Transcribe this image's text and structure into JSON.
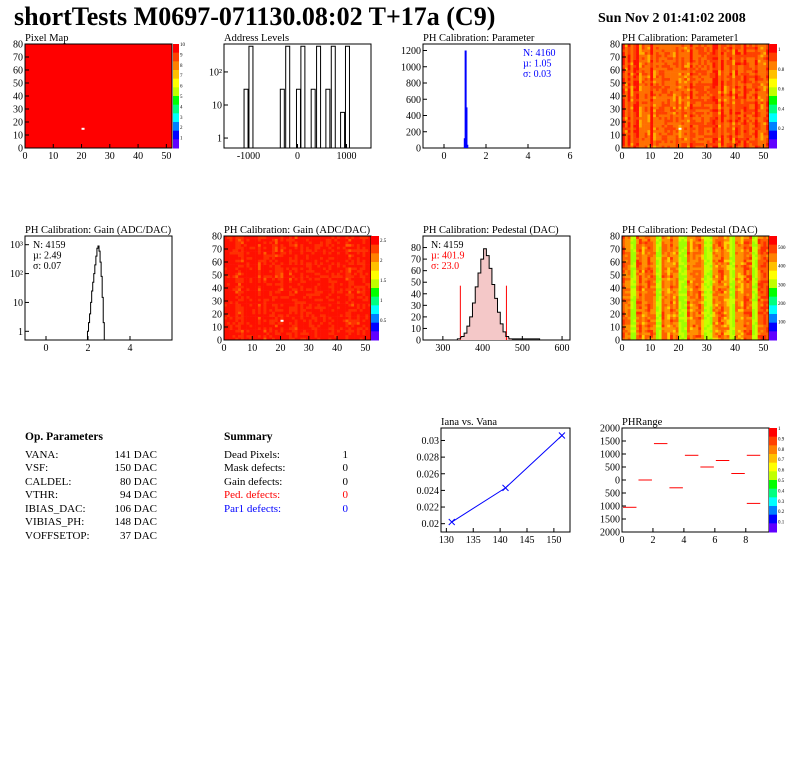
{
  "header": {
    "title": "shortTests M0697-071130.08:02 T+17a (C9)",
    "date": "Sun Nov  2 01:41:02 2008"
  },
  "colors": {
    "fill_red": "#ff0000",
    "blue": "#0000ff",
    "red": "#ff0000"
  },
  "chart_data": [
    {
      "id": "pixel-map",
      "type": "heatmap",
      "title": "Pixel Map",
      "xlim": [
        0,
        52
      ],
      "ylim": [
        0,
        80
      ],
      "xticks": [
        0,
        10,
        20,
        30,
        40,
        50
      ],
      "yticks": [
        0,
        10,
        20,
        30,
        40,
        50,
        60,
        70,
        80
      ],
      "fill": "uniform red (all pixels 10)",
      "dead_pixels": [
        {
          "x": 20,
          "y": 14
        }
      ],
      "colorbar": {
        "min": 0,
        "max": 10,
        "ticks": [
          1,
          2,
          3,
          4,
          5,
          6,
          7,
          8,
          9,
          10
        ]
      }
    },
    {
      "id": "address-levels",
      "type": "bar",
      "title": "Address Levels",
      "xlim": [
        -1500,
        1500
      ],
      "xticks": [
        -1000,
        0,
        1000
      ],
      "ylog": true,
      "ylim": [
        0.5,
        700
      ],
      "yticks": [
        {
          "v": 1,
          "label": "1"
        },
        {
          "v": 10,
          "label": "10"
        },
        {
          "v": 100,
          "label": "10²"
        }
      ],
      "peaks": [
        {
          "x": -1050,
          "y": 30
        },
        {
          "x": -950,
          "y": 600
        },
        {
          "x": -310,
          "y": 30
        },
        {
          "x": -200,
          "y": 600
        },
        {
          "x": 20,
          "y": 30
        },
        {
          "x": 110,
          "y": 600
        },
        {
          "x": 320,
          "y": 30
        },
        {
          "x": 430,
          "y": 600
        },
        {
          "x": 620,
          "y": 30
        },
        {
          "x": 730,
          "y": 600
        },
        {
          "x": 920,
          "y": 6
        },
        {
          "x": 1020,
          "y": 600
        }
      ]
    },
    {
      "id": "ph-cal-parameter",
      "type": "bar",
      "title": "PH Calibration: Parameter",
      "xlim": [
        -1,
        6
      ],
      "xticks": [
        0,
        2,
        4,
        6
      ],
      "ylim": [
        0,
        1280
      ],
      "yticks": [
        0,
        200,
        400,
        600,
        800,
        1000,
        1200
      ],
      "bins": [
        {
          "x": 0.99,
          "y": 120
        },
        {
          "x": 1.03,
          "y": 1200
        },
        {
          "x": 1.07,
          "y": 500
        },
        {
          "x": 1.11,
          "y": 40
        }
      ],
      "stats": [
        "N: 4160",
        "µ: 1.05",
        "σ: 0.03"
      ],
      "stats_color": "#0000ff"
    },
    {
      "id": "ph-cal-parameter1",
      "type": "heatmap",
      "title": "PH Calibration: Parameter1",
      "xlim": [
        0,
        52
      ],
      "ylim": [
        0,
        80
      ],
      "xticks": [
        0,
        10,
        20,
        30,
        40,
        50
      ],
      "yticks": [
        0,
        10,
        20,
        30,
        40,
        50,
        60,
        70,
        80
      ],
      "fill": "mostly red/orange column stripes",
      "dead_pixels": [
        {
          "x": 20,
          "y": 14
        }
      ],
      "colorbar": {
        "min": 0,
        "max": 1.05,
        "ticks": [
          0.2,
          0.4,
          0.6,
          0.8,
          1
        ]
      }
    },
    {
      "id": "ph-cal-gain-hist",
      "type": "bar",
      "title": "PH Calibration: Gain (ADC/DAC)",
      "xlim": [
        -1,
        6
      ],
      "xticks": [
        0,
        2,
        4
      ],
      "ylog": true,
      "ylim": [
        0.5,
        2000
      ],
      "yticks": [
        {
          "v": 1,
          "label": "1"
        },
        {
          "v": 10,
          "label": "10"
        },
        {
          "v": 100,
          "label": "10²"
        },
        {
          "v": 1000,
          "label": "10³"
        }
      ],
      "bins": [
        {
          "x": 2.0,
          "y": 1
        },
        {
          "x": 2.05,
          "y": 2
        },
        {
          "x": 2.1,
          "y": 4
        },
        {
          "x": 2.15,
          "y": 10
        },
        {
          "x": 2.2,
          "y": 25
        },
        {
          "x": 2.25,
          "y": 50
        },
        {
          "x": 2.3,
          "y": 100
        },
        {
          "x": 2.35,
          "y": 200
        },
        {
          "x": 2.4,
          "y": 400
        },
        {
          "x": 2.45,
          "y": 750
        },
        {
          "x": 2.5,
          "y": 900
        },
        {
          "x": 2.55,
          "y": 600
        },
        {
          "x": 2.6,
          "y": 250
        },
        {
          "x": 2.65,
          "y": 80
        },
        {
          "x": 2.7,
          "y": 15
        },
        {
          "x": 2.75,
          "y": 2
        }
      ],
      "stats": [
        "N: 4159",
        "µ: 2.49",
        "σ: 0.07"
      ],
      "stats_color": "#000000"
    },
    {
      "id": "ph-cal-gain-map",
      "type": "heatmap",
      "title": "PH Calibration: Gain (ADC/DAC)",
      "xlim": [
        0,
        52
      ],
      "ylim": [
        0,
        80
      ],
      "xticks": [
        0,
        10,
        20,
        30,
        40,
        50
      ],
      "yticks": [
        0,
        10,
        20,
        30,
        40,
        50,
        60,
        70,
        80
      ],
      "fill": "mostly red",
      "dead_pixels": [
        {
          "x": 20,
          "y": 14
        }
      ],
      "colorbar": {
        "min": 0,
        "max": 2.6,
        "ticks": [
          0.5,
          1,
          1.5,
          2,
          2.5
        ]
      }
    },
    {
      "id": "ph-cal-pedestal-hist",
      "type": "bar",
      "title": "PH Calibration: Pedestal (DAC)",
      "xlim": [
        250,
        620
      ],
      "xticks": [
        300,
        400,
        500,
        600
      ],
      "ylim": [
        0,
        90
      ],
      "yticks": [
        0,
        10,
        20,
        30,
        40,
        50,
        60,
        70,
        80
      ],
      "bins": [
        {
          "x": 340,
          "y": 1
        },
        {
          "x": 350,
          "y": 3
        },
        {
          "x": 357,
          "y": 6
        },
        {
          "x": 364,
          "y": 12
        },
        {
          "x": 371,
          "y": 20
        },
        {
          "x": 378,
          "y": 32
        },
        {
          "x": 385,
          "y": 46
        },
        {
          "x": 392,
          "y": 58
        },
        {
          "x": 399,
          "y": 70
        },
        {
          "x": 406,
          "y": 79
        },
        {
          "x": 413,
          "y": 73
        },
        {
          "x": 420,
          "y": 62
        },
        {
          "x": 427,
          "y": 48
        },
        {
          "x": 434,
          "y": 36
        },
        {
          "x": 441,
          "y": 24
        },
        {
          "x": 448,
          "y": 14
        },
        {
          "x": 455,
          "y": 7
        },
        {
          "x": 462,
          "y": 3
        },
        {
          "x": 470,
          "y": 1
        },
        {
          "x": 540,
          "y": 1
        }
      ],
      "cut_lines": [
        {
          "x": 344,
          "y": 47
        },
        {
          "x": 460,
          "y": 47
        }
      ],
      "stats": [
        "N: 4159",
        "µ: 401.9",
        "σ: 23.0"
      ],
      "stats_colors": [
        "#000000",
        "#ff0000",
        "#ff0000"
      ]
    },
    {
      "id": "ph-cal-pedestal-map",
      "type": "heatmap",
      "title": "PH Calibration: Pedestal (DAC)",
      "xlim": [
        0,
        52
      ],
      "ylim": [
        0,
        80
      ],
      "xticks": [
        0,
        10,
        20,
        30,
        40,
        50
      ],
      "yticks": [
        0,
        10,
        20,
        30,
        40,
        50,
        60,
        70,
        80
      ],
      "fill": "red/orange with green column stripes",
      "colorbar": {
        "min": 0,
        "max": 560,
        "ticks": [
          100,
          200,
          300,
          400,
          500
        ]
      }
    },
    {
      "id": "iana-vana",
      "type": "line",
      "title": "Iana vs. Vana",
      "xlim": [
        129,
        153
      ],
      "xticks": [
        130,
        135,
        140,
        145,
        150
      ],
      "ylim": [
        0.019,
        0.0315
      ],
      "yticks": [
        0.02,
        0.022,
        0.024,
        0.026,
        0.028,
        0.03
      ],
      "yticklabels": [
        "0.02",
        "0.022",
        "0.024",
        "0.026",
        "0.028",
        "0.03"
      ],
      "points": [
        {
          "x": 131,
          "y": 0.0202
        },
        {
          "x": 141,
          "y": 0.0243
        },
        {
          "x": 151.5,
          "y": 0.0306
        }
      ]
    },
    {
      "id": "ph-range",
      "type": "heatmap",
      "title": "PHRange",
      "xlim": [
        0,
        9.5
      ],
      "xticks": [
        0,
        2,
        4,
        6,
        8
      ],
      "ylim": [
        -2000,
        2000
      ],
      "yticks": [
        -2000,
        -1500,
        -1000,
        -500,
        0,
        500,
        1000,
        1500,
        2000
      ],
      "yticklabels": [
        "2000",
        "1500",
        "1000",
        "500",
        "0",
        "500",
        "1000",
        "1500",
        "2000"
      ],
      "segments": [
        {
          "x0": 0,
          "x1": 1,
          "y": -1050
        },
        {
          "x0": 1,
          "x1": 2,
          "y": 0
        },
        {
          "x0": 2,
          "x1": 3,
          "y": 1400
        },
        {
          "x0": 3,
          "x1": 4,
          "y": -300
        },
        {
          "x0": 4,
          "x1": 5,
          "y": 950
        },
        {
          "x0": 5,
          "x1": 6,
          "y": 500
        },
        {
          "x0": 6,
          "x1": 7,
          "y": 750
        },
        {
          "x0": 7,
          "x1": 8,
          "y": 250
        },
        {
          "x0": 8,
          "x1": 9,
          "y": -900
        },
        {
          "x0": 8,
          "x1": 9,
          "y": 950
        }
      ],
      "colorbar": {
        "min": 0,
        "max": 1,
        "ticks": [
          0.1,
          0.2,
          0.3,
          0.4,
          0.5,
          0.6,
          0.7,
          0.8,
          0.9,
          1
        ]
      }
    }
  ],
  "op_parameters": {
    "title": "Op. Parameters",
    "rows": [
      {
        "name": "VANA:",
        "value": "141 DAC"
      },
      {
        "name": "VSF:",
        "value": "150 DAC"
      },
      {
        "name": "CALDEL:",
        "value": "80 DAC"
      },
      {
        "name": "VTHR:",
        "value": "94 DAC"
      },
      {
        "name": "IBIAS_DAC:",
        "value": "106 DAC"
      },
      {
        "name": "VIBIAS_PH:",
        "value": "148 DAC"
      },
      {
        "name": "VOFFSETOP:",
        "value": "37 DAC"
      }
    ]
  },
  "summary": {
    "title": "Summary",
    "rows": [
      {
        "name": "Dead Pixels:",
        "value": "1",
        "color": "#000000"
      },
      {
        "name": "Mask defects:",
        "value": "0",
        "color": "#000000"
      },
      {
        "name": "Gain defects:",
        "value": "0",
        "color": "#000000"
      },
      {
        "name": "Ped. defects:",
        "value": "0",
        "color": "#ff0000"
      },
      {
        "name": "Par1 defects:",
        "value": "0",
        "color": "#0000ff"
      }
    ]
  }
}
